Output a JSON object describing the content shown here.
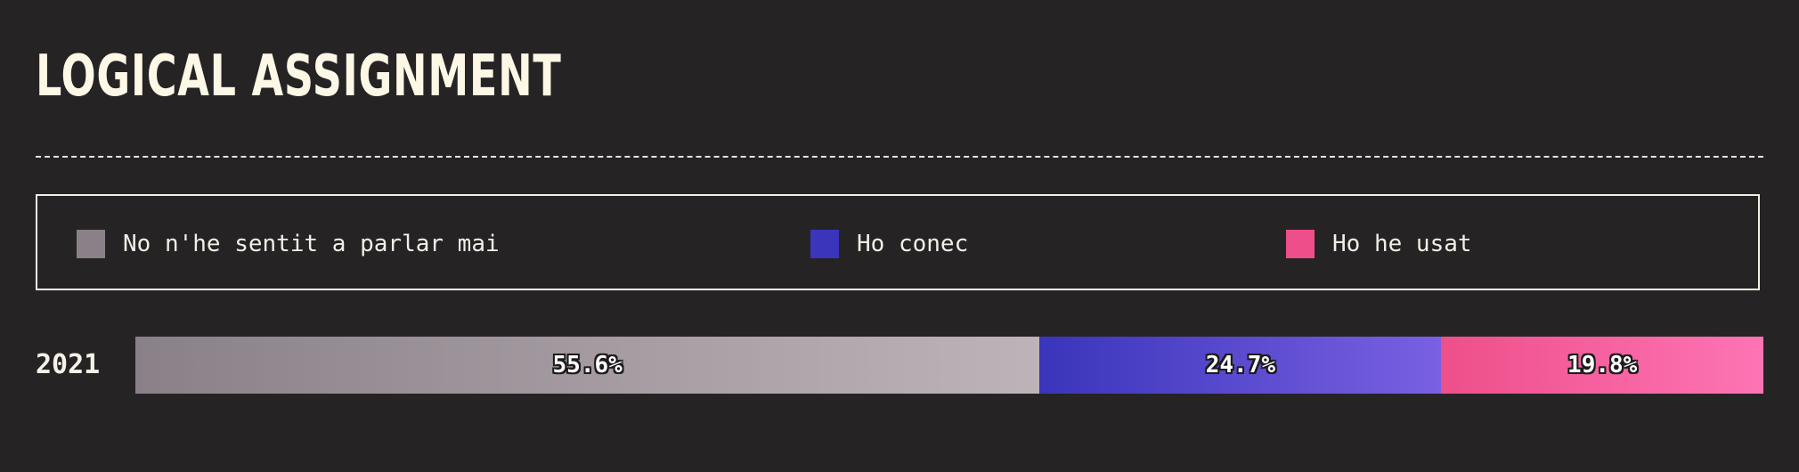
{
  "title": "LOGICAL ASSIGNMENT",
  "chart_data": {
    "type": "bar",
    "orientation": "horizontal",
    "stacked": true,
    "normalized": true,
    "title": "LOGICAL ASSIGNMENT",
    "categories": [
      "2021"
    ],
    "series": [
      {
        "name": "No n'he sentit a parlar mai",
        "values": [
          55.6
        ],
        "label": "55.6%",
        "color": "#8a8088",
        "color_end": "#bdb3b8"
      },
      {
        "name": "Ho conec",
        "values": [
          24.7
        ],
        "label": "24.7%",
        "color": "#3a35bb",
        "color_end": "#7a60e2"
      },
      {
        "name": "Ho he usat",
        "values": [
          19.8
        ],
        "label": "19.8%",
        "color": "#ee4f8a",
        "color_end": "#fd74b4"
      }
    ],
    "unit": "%",
    "legend_position": "top",
    "grid": false
  }
}
